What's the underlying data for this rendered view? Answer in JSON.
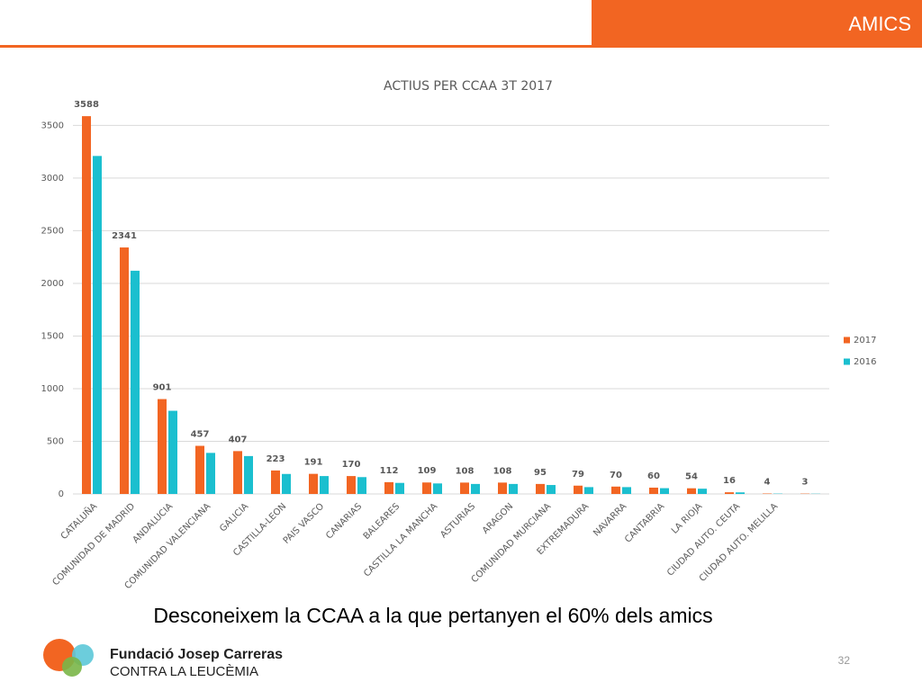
{
  "header": {
    "title": "AMICS"
  },
  "chart_data": {
    "type": "bar",
    "title": "ACTIUS PER CCAA 3T 2017",
    "categories": [
      "CATALUÑA",
      "COMUNIDAD DE MADRID",
      "ANDALUCIA",
      "COMUNIDAD VALENCIANA",
      "GALICIA",
      "CASTILLA-LEON",
      "PAIS VASCO",
      "CANARIAS",
      "BALEARES",
      "CASTILLA LA MANCHA",
      "ASTURIAS",
      "ARAGON",
      "COMUNIDAD MURCIANA",
      "EXTREMADURA",
      "NAVARRA",
      "CANTABRIA",
      "LA RIOJA",
      "CIUDAD AUTO. CEUTA",
      "CIUDAD AUTO. MELILLA",
      null
    ],
    "series": [
      {
        "name": "2017",
        "color": "#f26522",
        "values": [
          3588,
          2341,
          901,
          457,
          407,
          223,
          191,
          170,
          112,
          109,
          108,
          108,
          95,
          79,
          70,
          60,
          54,
          16,
          4,
          3
        ]
      },
      {
        "name": "2016",
        "color": "#1bbfcf",
        "values": [
          3210,
          2120,
          790,
          390,
          360,
          190,
          170,
          160,
          105,
          100,
          95,
          95,
          85,
          65,
          65,
          55,
          50,
          15,
          3,
          2
        ]
      }
    ],
    "ylim": [
      0,
      3700
    ],
    "yticks": [
      0,
      500,
      1000,
      1500,
      2000,
      2500,
      3000,
      3500
    ],
    "grid": true,
    "legend": "right",
    "data_labels_series": 0
  },
  "caption": "Desconeixem la CCAA a la que pertanyen el 60% dels amics",
  "footer": {
    "org_line1": "Fundació Josep Carreras",
    "org_line2": "CONTRA LA LEUCÈMIA",
    "page_number": "32"
  }
}
